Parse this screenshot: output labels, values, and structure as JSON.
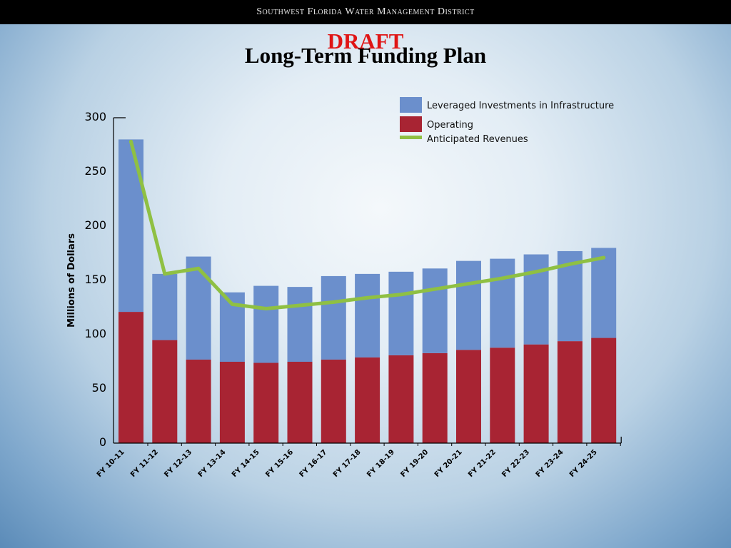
{
  "header": {
    "organization": "Southwest Florida Water Management District",
    "draft_label": "DRAFT",
    "title": "Long-Term Funding Plan"
  },
  "chart_data": {
    "type": "bar",
    "stacked": true,
    "categories": [
      "FY 10-11",
      "FY 11-12",
      "FY 12-13",
      "FY 13-14",
      "FY 14-15",
      "FY 15-16",
      "FY 16-17",
      "FY 17-18",
      "FY 18-19",
      "FY 19-20",
      "FY 20-21",
      "FY 21-22",
      "FY 22-23",
      "FY 23-24",
      "FY 24-25"
    ],
    "series": [
      {
        "name": "Operating",
        "kind": "bar",
        "color": "#a82433",
        "values": [
          121,
          95,
          77,
          75,
          74,
          75,
          77,
          79,
          81,
          83,
          86,
          88,
          91,
          94,
          97
        ]
      },
      {
        "name": "Leveraged Investments in Infrastructure",
        "kind": "bar",
        "color": "#6b8fcc",
        "values": [
          159,
          61,
          95,
          64,
          71,
          69,
          77,
          77,
          77,
          78,
          82,
          82,
          83,
          83,
          83
        ]
      },
      {
        "name": "Anticipated Revenues",
        "kind": "line",
        "color": "#8fc043",
        "values": [
          278,
          156,
          161,
          128,
          124,
          127,
          130,
          134,
          137,
          142,
          147,
          152,
          158,
          165,
          171
        ]
      }
    ],
    "legend_order": [
      "Leveraged Investments in Infrastructure",
      "Operating",
      "Anticipated Revenues"
    ],
    "legend_position": "top-right",
    "ylabel": "Millions of  Dollars",
    "xlabel": "",
    "ylim": [
      0,
      300
    ],
    "yticks": [
      0,
      50,
      100,
      150,
      200,
      250,
      300
    ],
    "grid": false
  }
}
